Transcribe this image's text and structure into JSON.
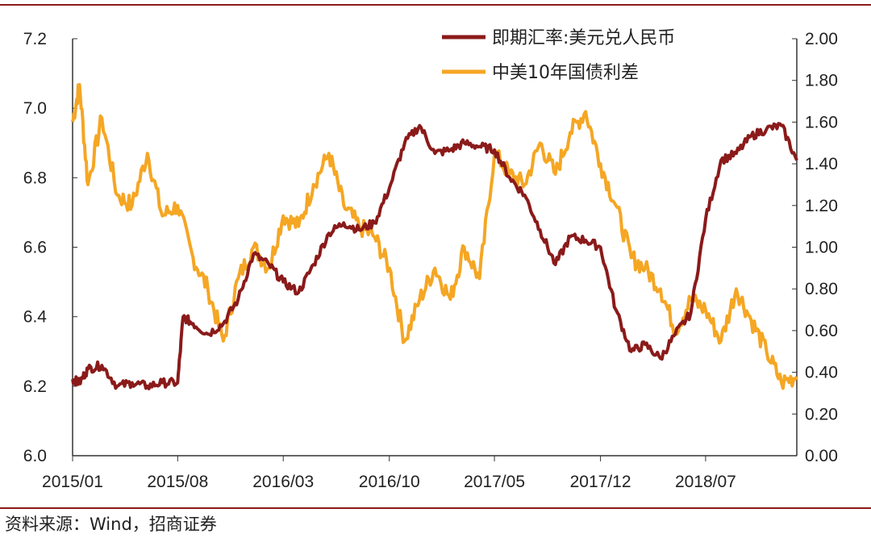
{
  "source_note": "资料来源：Wind，招商证券",
  "colors": {
    "fx": "#8b1a1a",
    "spread": "#f5a623",
    "rule": "#8b1a1a",
    "axis": "#333333"
  },
  "chart_data": {
    "type": "line",
    "title": "",
    "legend_placement": "top-right",
    "grid": false,
    "x_ticks": [
      "2015/01",
      "2015/08",
      "2016/03",
      "2016/10",
      "2017/05",
      "2017/12",
      "2018/07"
    ],
    "x_range": [
      "2015/01",
      "2019/01"
    ],
    "y_left": {
      "range": [
        6.0,
        7.2
      ],
      "ticks": [
        "6.0",
        "6.2",
        "6.4",
        "6.6",
        "6.8",
        "7.0",
        "7.2"
      ]
    },
    "y_right": {
      "range": [
        0.0,
        2.0
      ],
      "ticks": [
        "0.00",
        "0.20",
        "0.40",
        "0.60",
        "0.80",
        "1.00",
        "1.20",
        "1.40",
        "1.60",
        "1.80",
        "2.00"
      ]
    },
    "series": [
      {
        "name": "即期汇率:美元兑人民币",
        "axis": "left",
        "x": [
          "2015-01",
          "2015-01-15",
          "2015-02",
          "2015-03",
          "2015-04",
          "2015-05",
          "2015-06",
          "2015-07",
          "2015-08",
          "2015-08-12",
          "2015-09",
          "2015-10",
          "2015-11",
          "2015-12",
          "2016-01",
          "2016-02",
          "2016-03",
          "2016-04",
          "2016-05",
          "2016-06",
          "2016-07",
          "2016-08",
          "2016-09",
          "2016-10",
          "2016-11",
          "2016-12",
          "2017-01",
          "2017-02",
          "2017-03",
          "2017-04",
          "2017-05",
          "2017-06",
          "2017-07",
          "2017-08",
          "2017-09",
          "2017-10",
          "2017-11",
          "2017-12",
          "2018-01",
          "2018-02",
          "2018-03",
          "2018-04",
          "2018-05",
          "2018-06",
          "2018-07",
          "2018-08",
          "2018-09",
          "2018-10",
          "2018-11",
          "2018-12",
          "2019-01"
        ],
        "values": [
          6.22,
          6.21,
          6.25,
          6.26,
          6.2,
          6.21,
          6.2,
          6.21,
          6.21,
          6.4,
          6.38,
          6.35,
          6.38,
          6.45,
          6.58,
          6.55,
          6.5,
          6.47,
          6.55,
          6.64,
          6.67,
          6.65,
          6.67,
          6.77,
          6.9,
          6.95,
          6.87,
          6.88,
          6.9,
          6.89,
          6.88,
          6.8,
          6.75,
          6.65,
          6.55,
          6.63,
          6.62,
          6.6,
          6.42,
          6.3,
          6.32,
          6.28,
          6.35,
          6.41,
          6.68,
          6.85,
          6.87,
          6.92,
          6.94,
          6.95,
          6.85
        ]
      },
      {
        "name": "中美10年国债利差",
        "axis": "right",
        "x": [
          "2015-01",
          "2015-01-15",
          "2015-02",
          "2015-03",
          "2015-04",
          "2015-05",
          "2015-06",
          "2015-07",
          "2015-08",
          "2015-09",
          "2015-10",
          "2015-11",
          "2015-12",
          "2016-01",
          "2016-02",
          "2016-03",
          "2016-04",
          "2016-05",
          "2016-06",
          "2016-07",
          "2016-08",
          "2016-09",
          "2016-10",
          "2016-11",
          "2016-12",
          "2017-01",
          "2017-02",
          "2017-03",
          "2017-04",
          "2017-05",
          "2017-06",
          "2017-07",
          "2017-08",
          "2017-09",
          "2017-10",
          "2017-11",
          "2017-12",
          "2018-01",
          "2018-02",
          "2018-03",
          "2018-04",
          "2018-05",
          "2018-06",
          "2018-07",
          "2018-08",
          "2018-09",
          "2018-10",
          "2018-11",
          "2018-12",
          "2019-01"
        ],
        "values": [
          1.6,
          1.78,
          1.3,
          1.62,
          1.25,
          1.2,
          1.45,
          1.15,
          1.2,
          0.95,
          0.8,
          0.55,
          0.85,
          1.0,
          0.9,
          1.15,
          1.1,
          1.3,
          1.45,
          1.2,
          1.1,
          1.05,
          0.9,
          0.55,
          0.75,
          0.9,
          0.75,
          1.0,
          0.85,
          1.45,
          1.35,
          1.3,
          1.5,
          1.35,
          1.55,
          1.65,
          1.4,
          1.2,
          0.95,
          0.9,
          0.8,
          0.6,
          0.75,
          0.7,
          0.55,
          0.8,
          0.65,
          0.5,
          0.35,
          0.38
        ]
      }
    ]
  }
}
